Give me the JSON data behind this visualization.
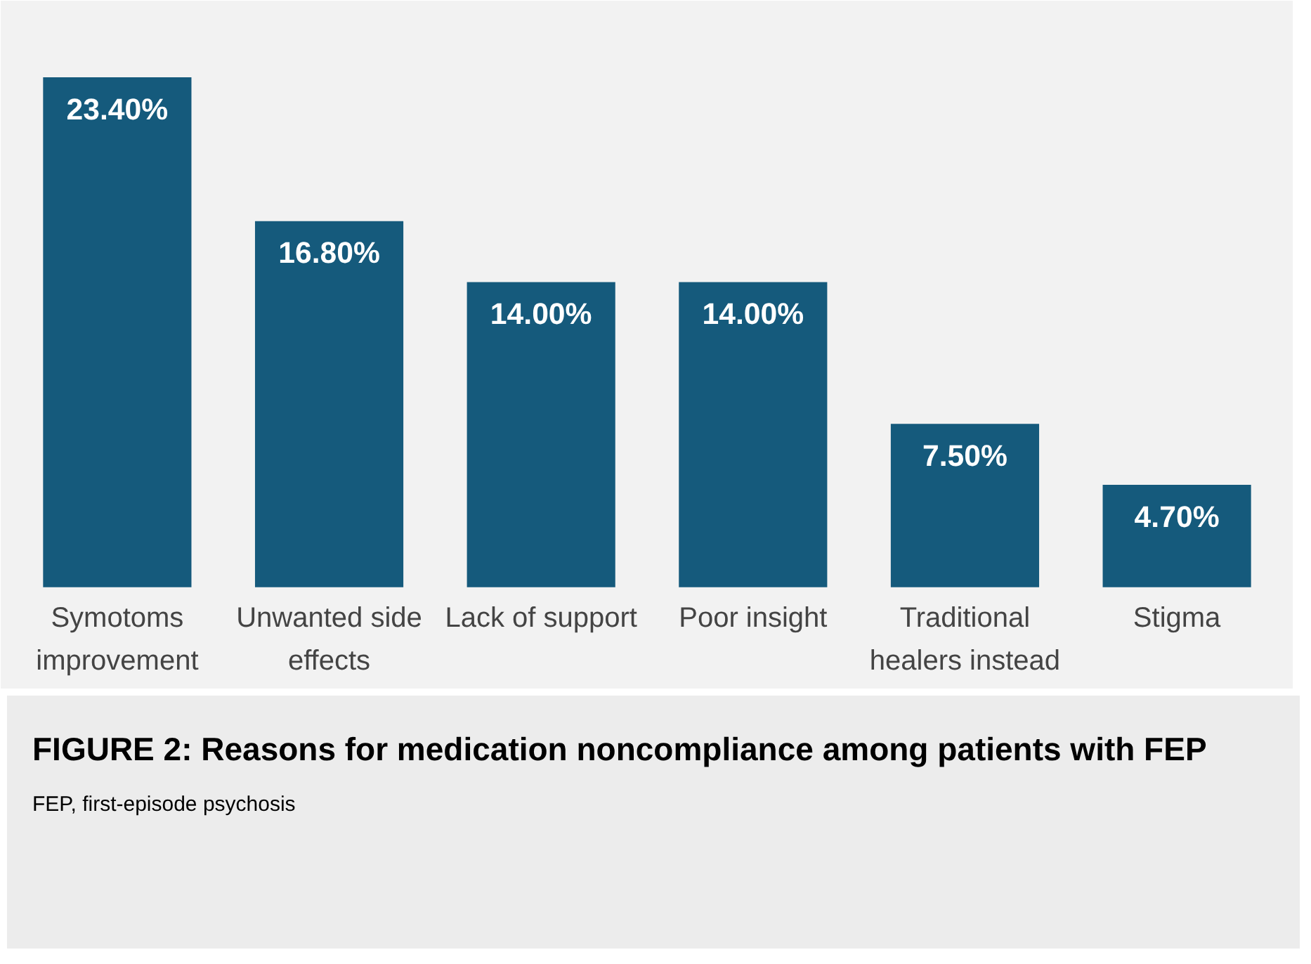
{
  "chart_data": {
    "type": "bar",
    "title": "FIGURE 2: Reasons for medication noncompliance among patients with FEP",
    "categories": [
      "Symotoms improvement",
      "Unwanted side effects",
      "Lack of support",
      "Poor insight",
      "Traditional healers instead",
      "Stigma"
    ],
    "values": [
      23.4,
      16.8,
      14.0,
      14.0,
      7.5,
      4.7
    ],
    "value_labels": [
      "23.40%",
      "16.80%",
      "14.00%",
      "14.00%",
      "7.50%",
      "4.70%"
    ],
    "color": "#155a7c",
    "annotations": [
      "FEP, first-episode psychosis"
    ]
  }
}
